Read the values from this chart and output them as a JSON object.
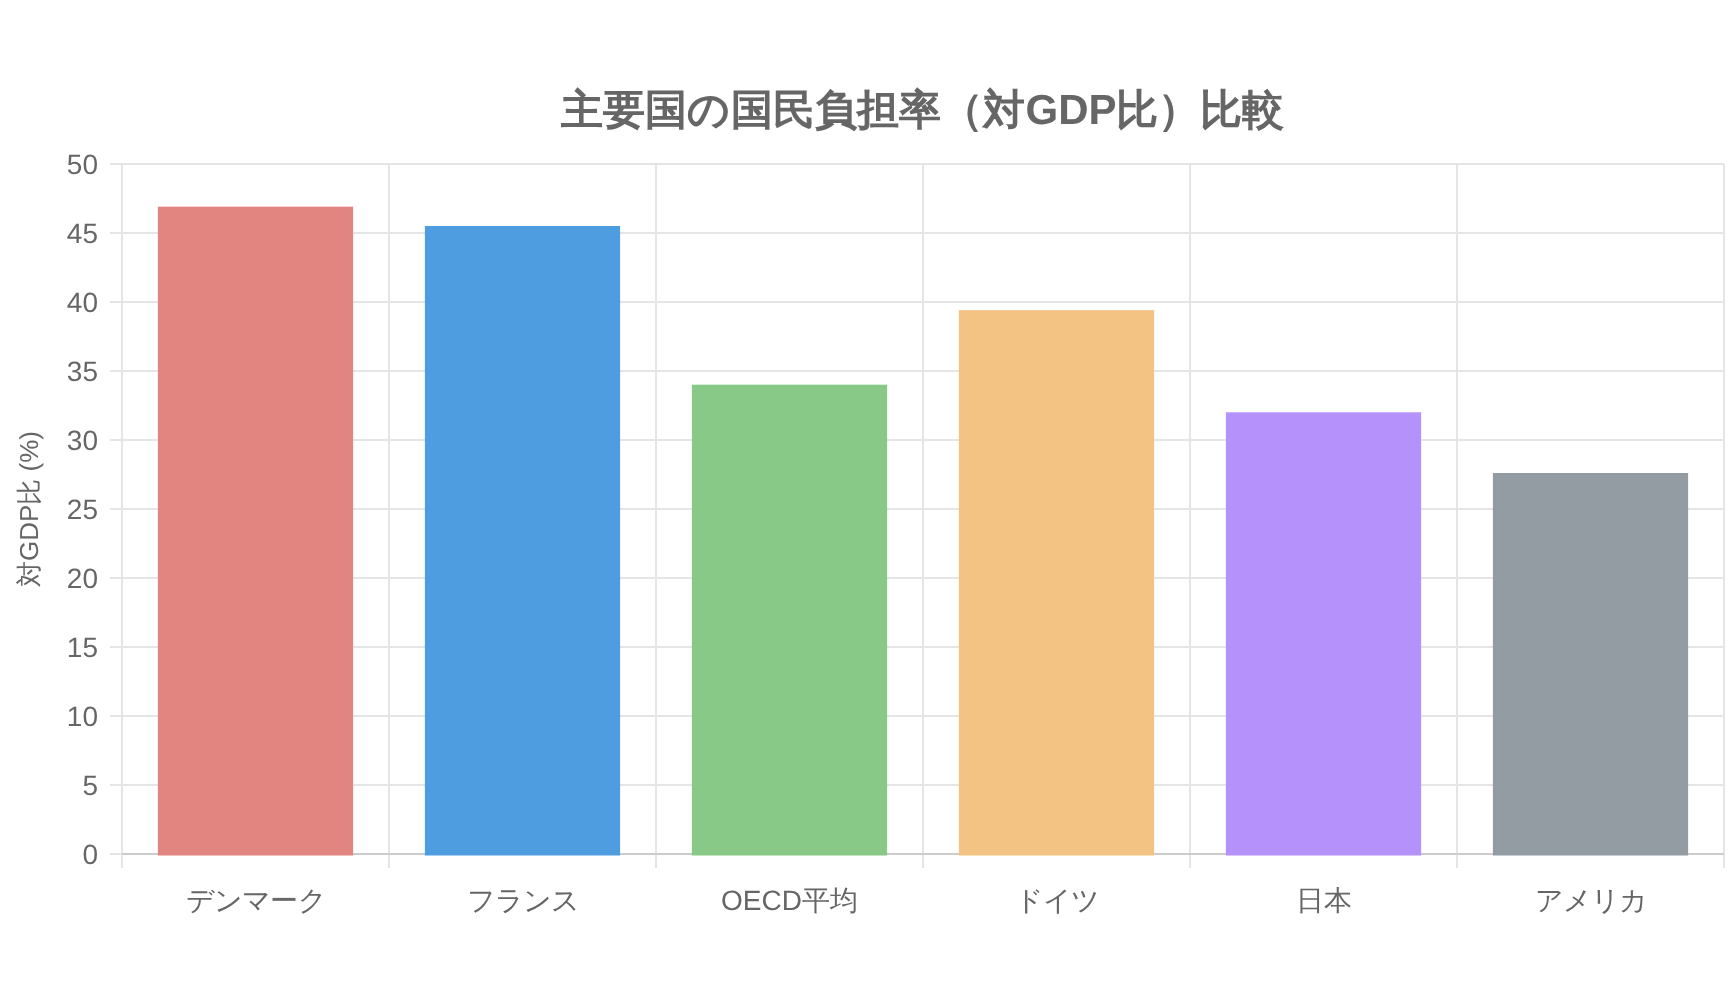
{
  "chart_data": {
    "type": "bar",
    "title": "主要国の国民負担率（対GDP比）比較",
    "ylabel": "対GDP比 (%)",
    "categories": [
      "デンマーク",
      "フランス",
      "OECD平均",
      "ドイツ",
      "日本",
      "アメリカ"
    ],
    "values": [
      46.8,
      45.4,
      33.9,
      39.3,
      31.9,
      27.5
    ],
    "colors": [
      "#e28480",
      "#4d9de0",
      "#88c987",
      "#f2c383",
      "#b592fb",
      "#949ca3"
    ],
    "ylim": [
      0,
      50
    ],
    "yticks": [
      0,
      5,
      10,
      15,
      20,
      25,
      30,
      35,
      40,
      45,
      50
    ],
    "grid": true
  }
}
